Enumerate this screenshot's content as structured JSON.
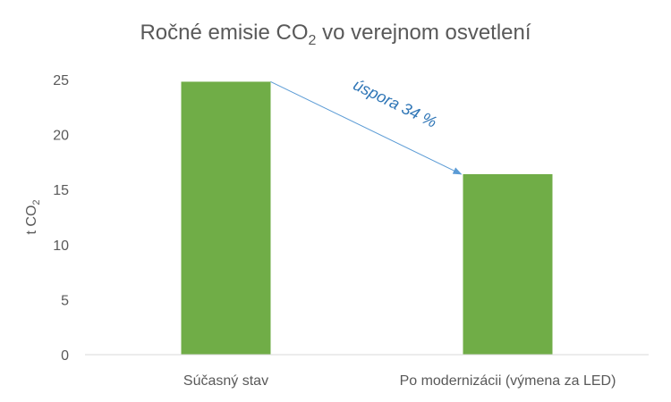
{
  "chart_data": {
    "type": "bar",
    "title": {
      "main": "Ročné emisie CO",
      "sub": "2",
      "rest": " vo verejnom osvetlení"
    },
    "ylabel": {
      "main": "t CO",
      "sub": "2"
    },
    "categories": [
      "Súčasný stav",
      "Po modernizácii (výmena za LED)"
    ],
    "values": [
      24.8,
      16.4
    ],
    "ylim": [
      0,
      25
    ],
    "yticks": [
      "0",
      "5",
      "10",
      "15",
      "20",
      "25"
    ],
    "grid": false,
    "annotation": "úspora 34 %",
    "colors": {
      "bar": "#70AD47",
      "annotation": "#2E75B6",
      "axis": "#D9D9D9",
      "text": "#595959"
    }
  }
}
